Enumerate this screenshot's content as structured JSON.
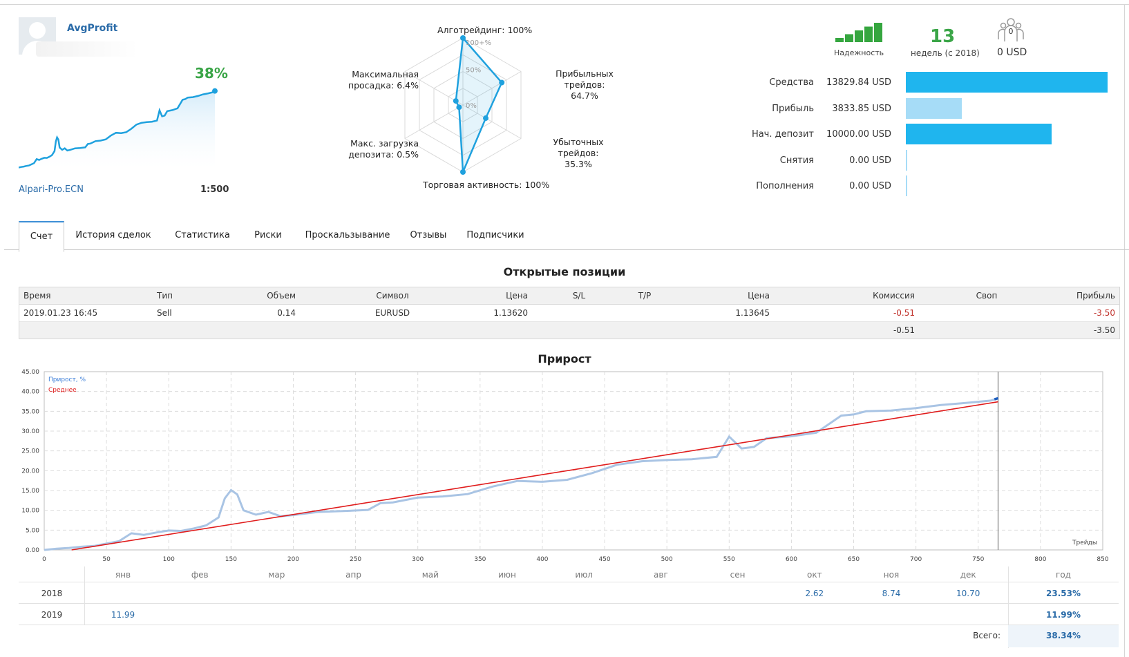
{
  "profile": {
    "username": "AvgProfit",
    "growth": "38%",
    "server": "Alpari-Pro.ECN",
    "leverage": "1:500"
  },
  "radar": {
    "algotrading": "Алготрейдинг: 100%",
    "profit_trades_1": "Прибыльных",
    "profit_trades_2": "трейдов: 64.7%",
    "loss_trades_1": "Убыточных",
    "loss_trades_2": "трейдов: 35.3%",
    "trading_activity": "Торговая активность: 100%",
    "max_load_1": "Макс. загрузка",
    "max_load_2": "депозита: 0.5%",
    "max_drawdown_1": "Максимальная",
    "max_drawdown_2": "просадка: 6.4%",
    "scale_100": "100+%",
    "scale_50": "50%",
    "scale_0": "0%",
    "values": [
      100,
      64.7,
      35.3,
      100,
      0.5,
      6.4
    ]
  },
  "stats": {
    "reliability_label": "Надежность",
    "reliability_level": 5,
    "weeks": "13",
    "weeks_label": "недель (с 2018)",
    "subscribers": "0",
    "subscribers_amount": "0 USD"
  },
  "financials": [
    {
      "label": "Средства",
      "value": "13829.84 USD",
      "amount": 13829.84,
      "color": "#1fb5ee"
    },
    {
      "label": "Прибыль",
      "value": "3833.85 USD",
      "amount": 3833.85,
      "color": "#a6dcf7"
    },
    {
      "label": "Нач. депозит",
      "value": "10000.00 USD",
      "amount": 10000.0,
      "color": "#1fb5ee"
    },
    {
      "label": "Снятия",
      "value": "0.00 USD",
      "amount": 0,
      "color": "#1fb5ee"
    },
    {
      "label": "Пополнения",
      "value": "0.00 USD",
      "amount": 0,
      "color": "#1fb5ee"
    }
  ],
  "tabs": [
    "Счет",
    "История сделок",
    "Статистика",
    "Риски",
    "Проскальзывание",
    "Отзывы",
    "Подписчики"
  ],
  "positions": {
    "title": "Открытые позиции",
    "headers": [
      "Время",
      "Тип",
      "Объем",
      "Символ",
      "Цена",
      "S/L",
      "T/P",
      "Цена",
      "Комиссия",
      "Своп",
      "Прибыль"
    ],
    "row": {
      "time": "2019.01.23 16:45",
      "type": "Sell",
      "volume": "0.14",
      "symbol": "EURUSD",
      "open_price": "1.13620",
      "sl": "",
      "tp": "",
      "price": "1.13645",
      "commission": "-0.51",
      "swap": "",
      "profit": "-3.50"
    },
    "totals": {
      "commission": "-0.51",
      "profit": "-3.50"
    }
  },
  "chart_data": {
    "type": "line",
    "title": "Прирост",
    "xlabel": "Трейды",
    "ylabel": "",
    "xlim": [
      0,
      850
    ],
    "ylim": [
      0,
      45
    ],
    "x_ticks": [
      0,
      50,
      100,
      150,
      200,
      250,
      300,
      350,
      400,
      450,
      500,
      550,
      600,
      650,
      700,
      750,
      800,
      850
    ],
    "y_ticks": [
      "0.00",
      "5.00",
      "10.00",
      "15.00",
      "20.00",
      "25.00",
      "30.00",
      "35.00",
      "40.00",
      "45.00"
    ],
    "legend": "top-left",
    "grid": true,
    "series": [
      {
        "name": "Прирост, %",
        "color": "#a9c4e4",
        "x": [
          0,
          10,
          20,
          30,
          40,
          50,
          60,
          70,
          80,
          90,
          100,
          110,
          120,
          130,
          140,
          145,
          150,
          155,
          160,
          170,
          180,
          190,
          200,
          220,
          240,
          260,
          270,
          280,
          300,
          320,
          340,
          360,
          380,
          400,
          420,
          440,
          460,
          480,
          500,
          520,
          540,
          550,
          560,
          570,
          580,
          600,
          620,
          640,
          650,
          660,
          680,
          700,
          720,
          740,
          760,
          766
        ],
        "y": [
          0,
          0.3,
          0.5,
          0.8,
          1.0,
          1.6,
          2.2,
          4.2,
          3.8,
          4.4,
          4.9,
          4.8,
          5.4,
          6.2,
          8.2,
          13.0,
          15.1,
          14.0,
          10.0,
          8.9,
          9.6,
          8.5,
          8.8,
          9.6,
          9.8,
          10.1,
          11.8,
          12.0,
          13.2,
          13.5,
          14.1,
          16.0,
          17.4,
          17.2,
          17.7,
          19.4,
          21.5,
          22.4,
          22.7,
          22.9,
          23.5,
          28.6,
          25.6,
          26.0,
          28.2,
          28.7,
          29.6,
          33.9,
          34.2,
          35.0,
          35.2,
          35.8,
          36.6,
          37.1,
          37.7,
          38.3
        ]
      },
      {
        "name": "Среднее",
        "color": "#e01c1c",
        "x": [
          22,
          766
        ],
        "y": [
          0,
          37.4
        ]
      }
    ],
    "marker_x": 766
  },
  "monthly": {
    "months": [
      "янв",
      "фев",
      "мар",
      "апр",
      "май",
      "июн",
      "июл",
      "авг",
      "сен",
      "окт",
      "ноя",
      "дек"
    ],
    "year_label": "год",
    "rows": [
      {
        "year": "2018",
        "values": [
          "",
          "",
          "",
          "",
          "",
          "",
          "",
          "",
          "",
          "2.62",
          "8.74",
          "10.70"
        ],
        "total": "23.53%"
      },
      {
        "year": "2019",
        "values": [
          "11.99",
          "",
          "",
          "",
          "",
          "",
          "",
          "",
          "",
          "",
          "",
          ""
        ],
        "total": "11.99%"
      }
    ],
    "total_label": "Всего:",
    "total_value": "38.34%"
  }
}
